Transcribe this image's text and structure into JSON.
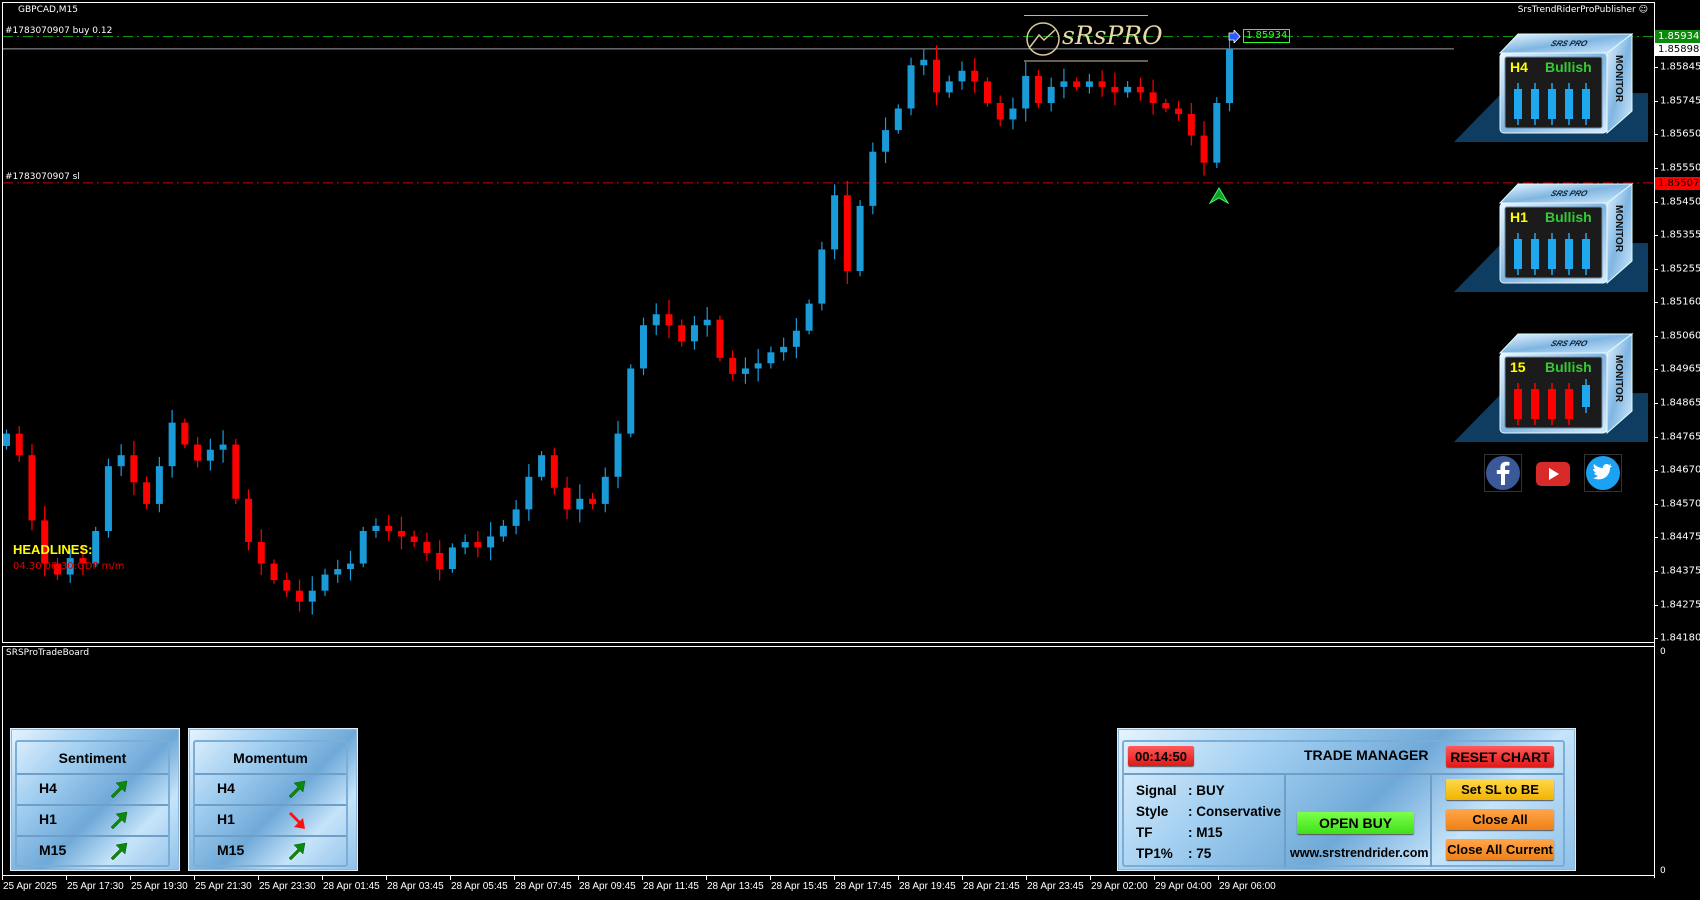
{
  "window": {
    "symbol_title": "GBPCAD,M15",
    "publisher": "SrsTrendRiderProPublisher",
    "smiley_icon": "smiley-icon"
  },
  "orders": {
    "buy_label": "#1783070907 buy 0.12",
    "sl_label": "#1783070907 sl",
    "buy_price": 1.85934,
    "current_price": 1.85898,
    "sl_price": 1.85507,
    "buy_price_text": "1.85934",
    "current_price_text": "1.85898",
    "sl_price_text": "1.85507"
  },
  "logo": {
    "text": "sRsPRO"
  },
  "headlines": {
    "title": "HEADLINES:",
    "item": "04.30 08:30:GDP m/m"
  },
  "price_axis": [
    "1.85845",
    "1.85745",
    "1.85650",
    "1.85550",
    "1.85450",
    "1.85355",
    "1.85255",
    "1.85160",
    "1.85060",
    "1.84965",
    "1.84865",
    "1.84765",
    "1.84670",
    "1.84570",
    "1.84475",
    "1.84375",
    "1.84275",
    "1.84180"
  ],
  "time_axis": [
    "25 Apr 2025",
    "25 Apr 17:30",
    "25 Apr 19:30",
    "25 Apr 21:30",
    "25 Apr 23:30",
    "28 Apr 01:45",
    "28 Apr 03:45",
    "28 Apr 05:45",
    "28 Apr 07:45",
    "28 Apr 09:45",
    "28 Apr 11:45",
    "28 Apr 13:45",
    "28 Apr 15:45",
    "28 Apr 17:45",
    "28 Apr 19:45",
    "28 Apr 21:45",
    "28 Apr 23:45",
    "29 Apr 02:00",
    "29 Apr 04:00",
    "29 Apr 06:00"
  ],
  "chart_data": {
    "type": "candlestick",
    "symbol": "GBPCAD",
    "timeframe": "M15",
    "ylim": [
      1.8418,
      1.8597
    ],
    "colors": {
      "bull": "#1a9ad6",
      "bear": "#ff0000"
    },
    "first_open": 1.8474,
    "closes": [
      1.84776,
      1.84713,
      1.84523,
      1.84397,
      1.84365,
      1.84413,
      1.84397,
      1.84492,
      1.84681,
      1.84713,
      1.84634,
      1.84571,
      1.84681,
      1.84808,
      1.84744,
      1.84697,
      1.84729,
      1.84744,
      1.84586,
      1.8446,
      1.84397,
      1.84349,
      1.84318,
      1.84286,
      1.84318,
      1.84365,
      1.84381,
      1.84397,
      1.84492,
      1.84507,
      1.84492,
      1.84476,
      1.8446,
      1.84428,
      1.84381,
      1.84444,
      1.8446,
      1.84444,
      1.84476,
      1.84507,
      1.84555,
      1.8465,
      1.84713,
      1.84618,
      1.84555,
      1.84586,
      1.84571,
      1.8465,
      1.84776,
      1.84966,
      1.85092,
      1.85124,
      1.85092,
      1.85045,
      1.85092,
      1.85108,
      1.84997,
      1.8495,
      1.84966,
      1.84981,
      1.85013,
      1.85029,
      1.85076,
      1.85155,
      1.85313,
      1.85471,
      1.8525,
      1.8544,
      1.85598,
      1.85661,
      1.85724,
      1.8585,
      1.85866,
      1.85771,
      1.85803,
      1.85834,
      1.85803,
      1.8574,
      1.85692,
      1.85724,
      1.85819,
      1.8574,
      1.85787,
      1.85803,
      1.85787,
      1.85803,
      1.85787,
      1.85771,
      1.85787,
      1.85771,
      1.8574,
      1.85724,
      1.85708,
      1.85645,
      1.85566,
      1.8574,
      1.85898
    ]
  },
  "monitors": [
    {
      "brand": "SRS PRO",
      "side": "MONITOR",
      "tf": "H4",
      "trend": "Bullish",
      "candles": [
        "bull",
        "bull",
        "bull",
        "bull",
        "bull"
      ]
    },
    {
      "brand": "SRS PRO",
      "side": "MONITOR",
      "tf": "H1",
      "trend": "Bullish",
      "candles": [
        "bull",
        "bull",
        "bull",
        "bull",
        "bull"
      ]
    },
    {
      "brand": "SRS PRO",
      "side": "MONITOR",
      "tf": "15",
      "trend": "Bullish",
      "candles": [
        "bear",
        "bear",
        "bear",
        "bear",
        "bull"
      ]
    }
  ],
  "social": [
    "facebook-icon",
    "youtube-icon",
    "twitter-icon"
  ],
  "subwindow": {
    "title": "SRSProTradeBoard",
    "axis_top": "0",
    "axis_bottom": "0"
  },
  "sentiment": {
    "title": "Sentiment",
    "rows": [
      {
        "tf": "H4",
        "dir": "up"
      },
      {
        "tf": "H1",
        "dir": "up"
      },
      {
        "tf": "M15",
        "dir": "up"
      }
    ]
  },
  "momentum": {
    "title": "Momentum",
    "rows": [
      {
        "tf": "H4",
        "dir": "up"
      },
      {
        "tf": "H1",
        "dir": "down"
      },
      {
        "tf": "M15",
        "dir": "up"
      }
    ]
  },
  "trade_manager": {
    "timer": "00:14:50",
    "title": "TRADE MANAGER",
    "reset": "RESET CHART",
    "info": [
      {
        "k": "Signal",
        "v": ": BUY"
      },
      {
        "k": "Style",
        "v": ": Conservative"
      },
      {
        "k": "TF",
        "v": ": M15"
      },
      {
        "k": "TP1%",
        "v": ": 75"
      }
    ],
    "open_buy": "OPEN BUY",
    "website": "www.srstrendrider.com",
    "sl_be": "Set SL to BE",
    "close_all": "Close All",
    "close_all_current": "Close All Current"
  }
}
